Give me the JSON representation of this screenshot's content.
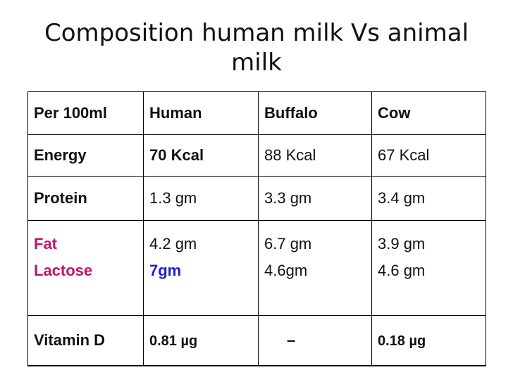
{
  "title": "Composition human milk Vs animal milk",
  "table": {
    "header": [
      "Per 100ml",
      "Human",
      "Buffalo",
      "Cow"
    ],
    "energy": {
      "label": "Energy",
      "human": "70 Kcal",
      "buffalo": "88 Kcal",
      "cow": "67 Kcal"
    },
    "protein": {
      "label": "Protein",
      "human": "1.3 gm",
      "buffalo": "3.3 gm",
      "cow": "3.4 gm"
    },
    "fat": {
      "label": "Fat",
      "human": "4.2 gm",
      "buffalo": "6.7 gm",
      "cow": "3.9 gm"
    },
    "lactose": {
      "label": "Lactose",
      "human": "7gm",
      "buffalo": "4.6gm",
      "cow": "4.6 gm"
    },
    "vitamin_d": {
      "label": "Vitamin D",
      "human": "0.81 µg",
      "buffalo": "–",
      "cow": "0.18 µg"
    }
  },
  "colors": {
    "label_magenta": "#c0156a",
    "highlight_blue": "#1f1fcf",
    "text": "#111111",
    "border": "#000000"
  }
}
